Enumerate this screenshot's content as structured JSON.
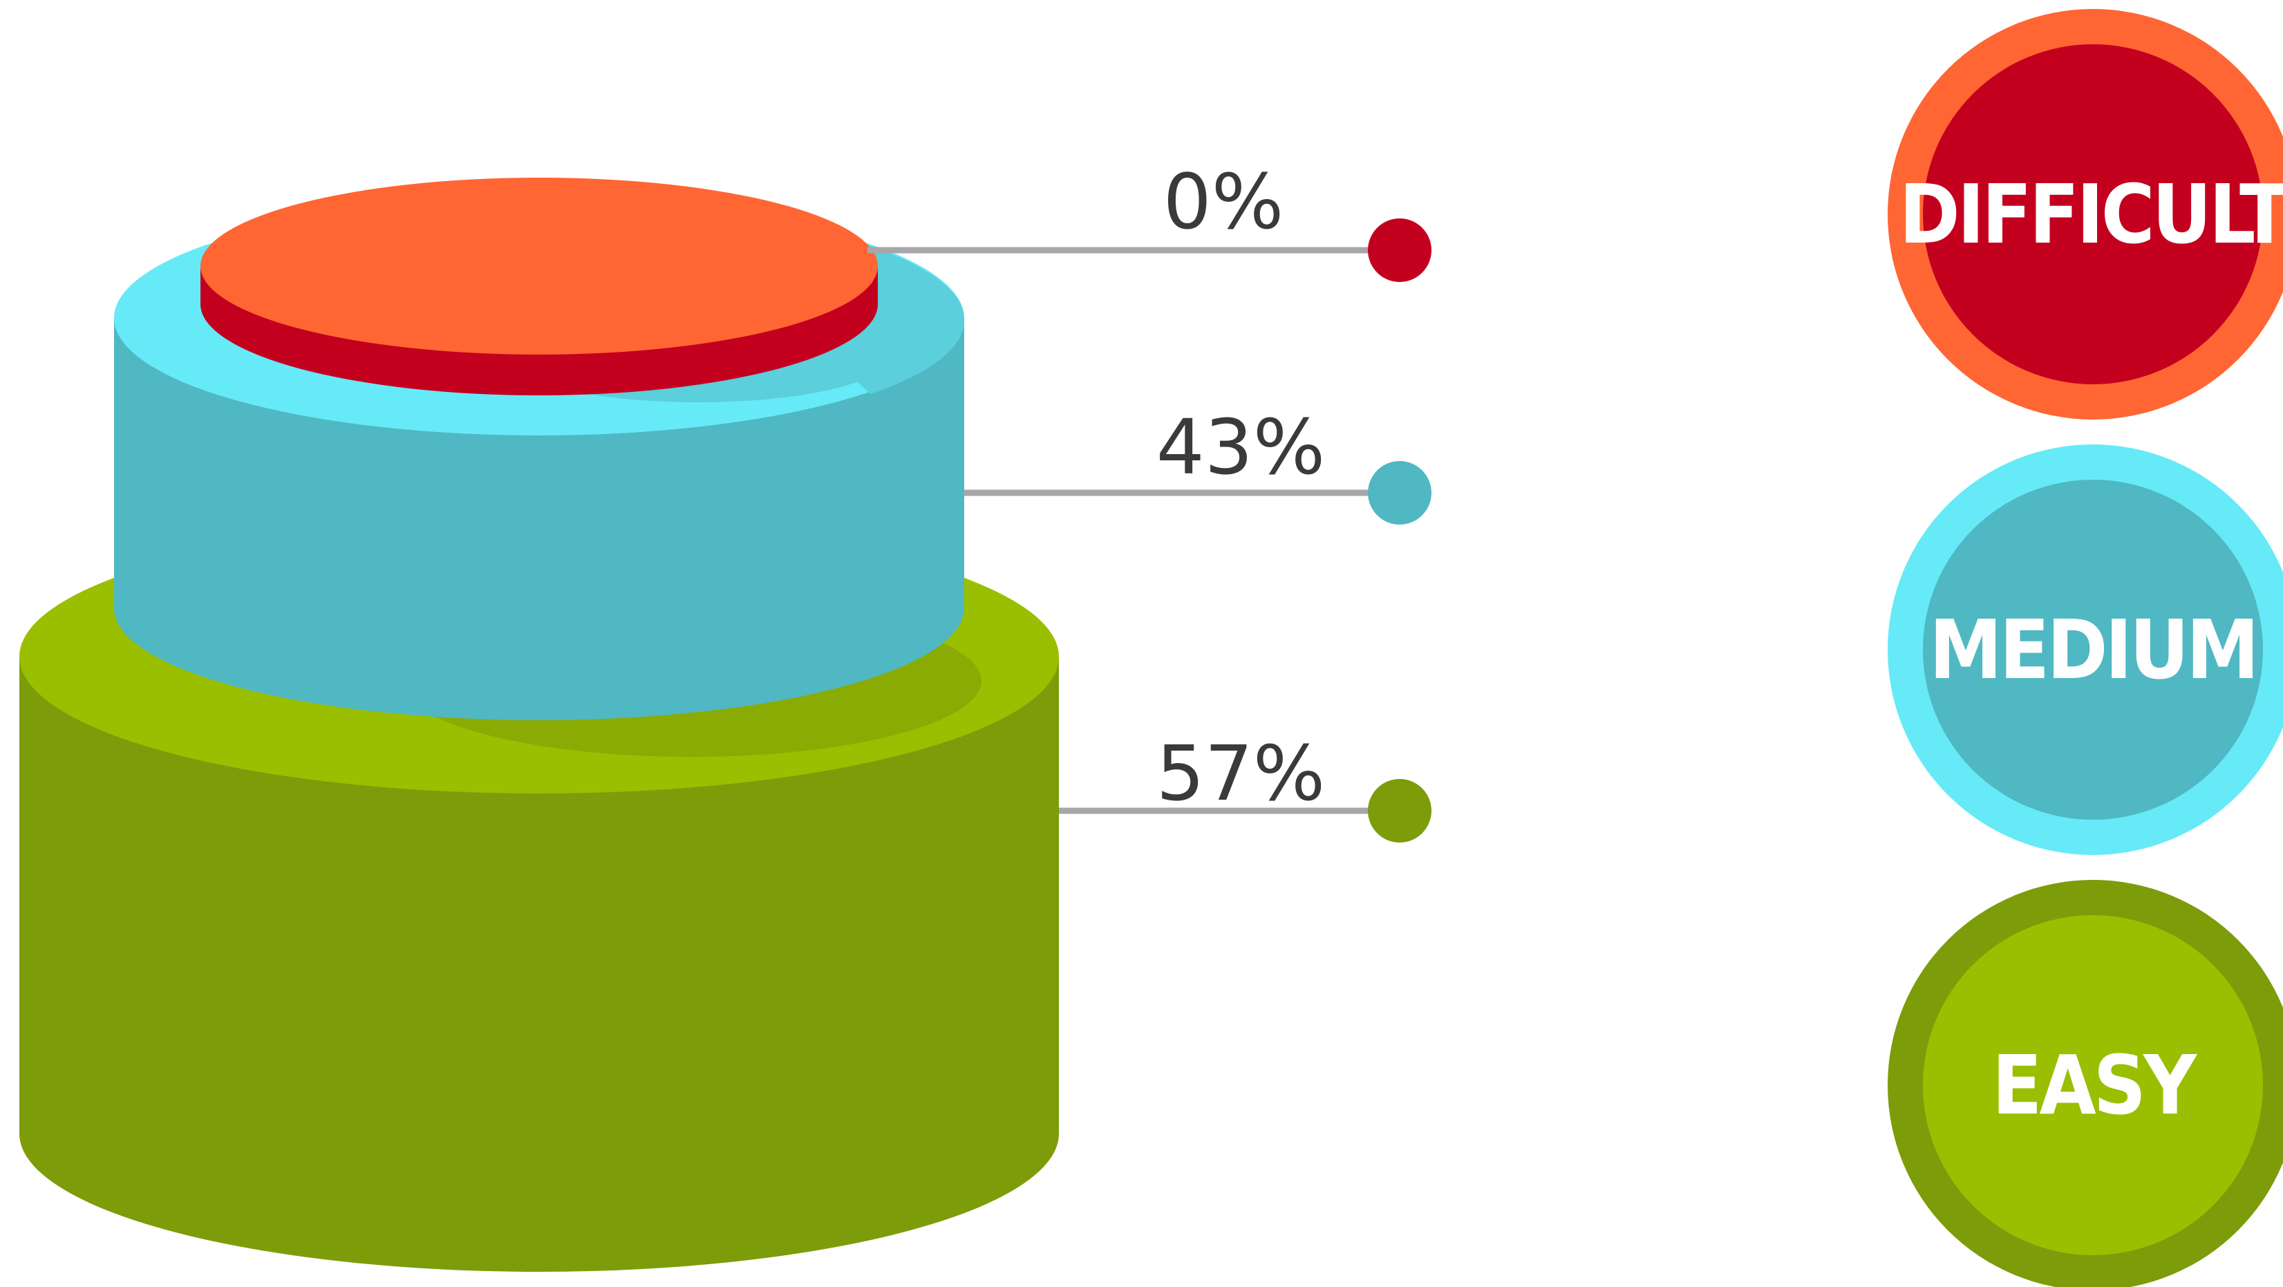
{
  "chart_data": {
    "type": "bar",
    "title": "",
    "categories": [
      "EASY",
      "MEDIUM",
      "DIFFICULT"
    ],
    "values": [
      57,
      43,
      0
    ],
    "value_labels": [
      "57%",
      "43%",
      "0%"
    ],
    "unit": "%",
    "colors": {
      "EASY": {
        "side": "#7d9c0a",
        "top": "#99bf00",
        "ring": "#7d9c0a",
        "fill": "#99bf00"
      },
      "MEDIUM": {
        "side": "#50b8c2",
        "top": "#66eaf8",
        "ring": "#66eaf8",
        "fill": "#50b8c2"
      },
      "DIFFICULT": {
        "side": "#c4001f",
        "top": "#ff6633",
        "ring": "#ff6633",
        "fill": "#c4001f"
      }
    },
    "connector_color": "#a7a7ab",
    "legend_position": "right"
  }
}
